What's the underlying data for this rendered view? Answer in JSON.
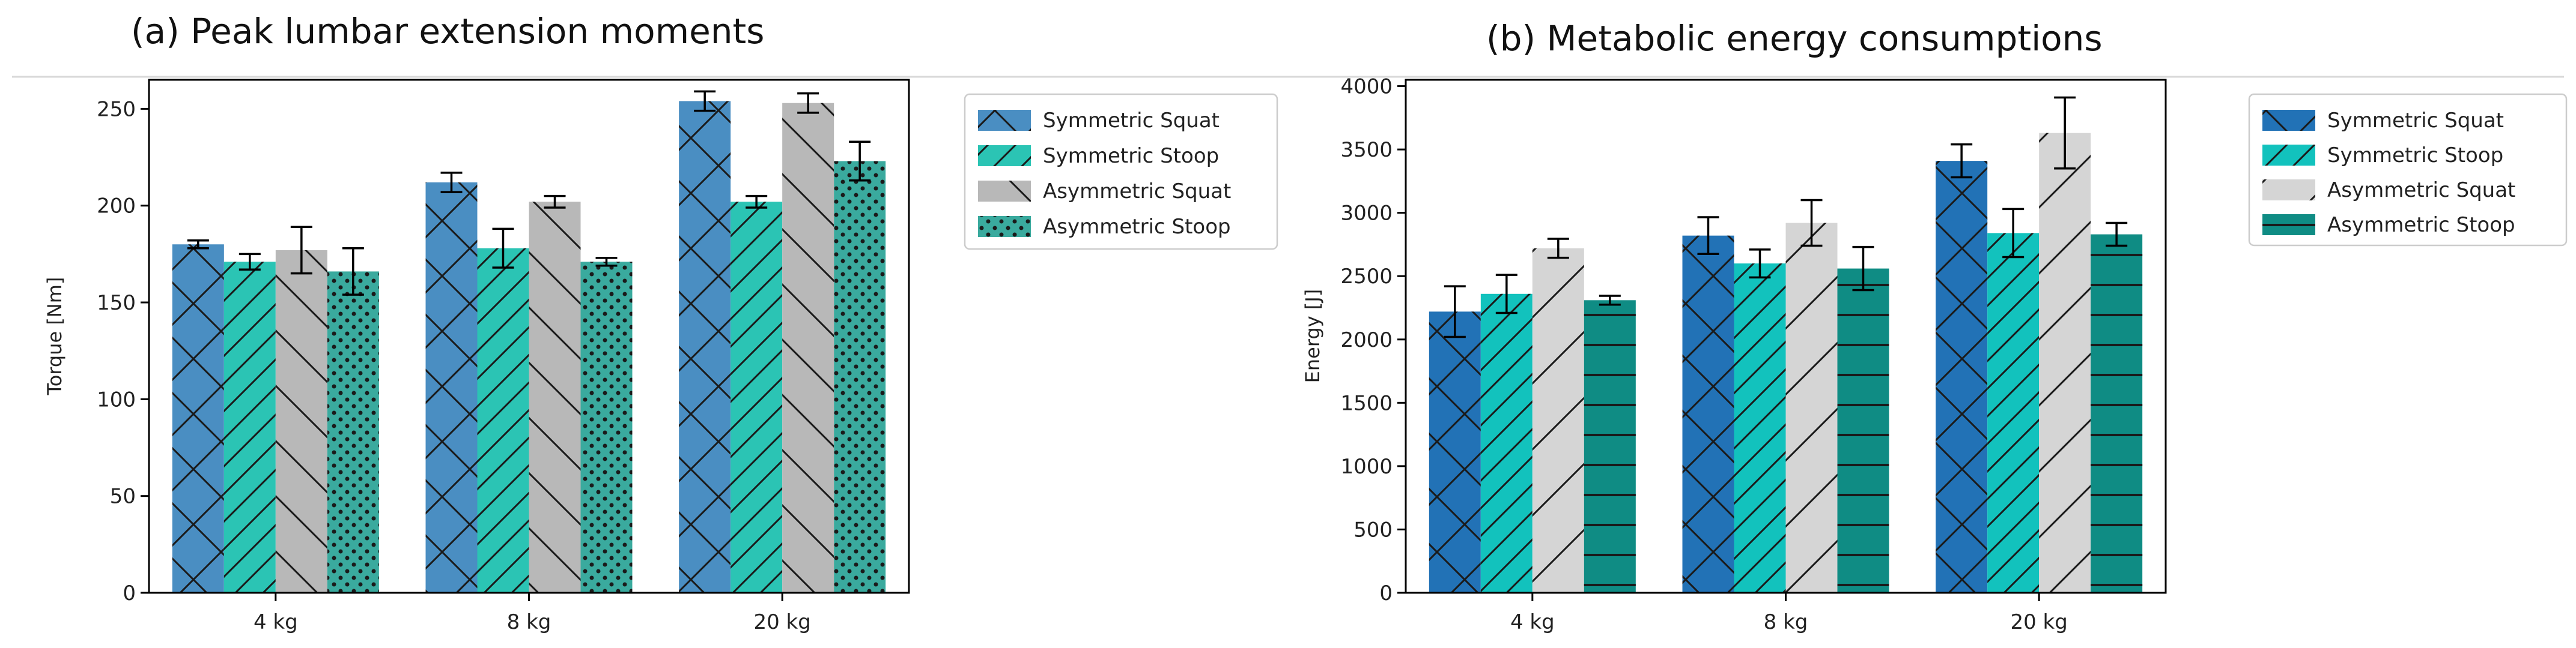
{
  "chart_data": [
    {
      "type": "bar",
      "title": "(a) Peak lumbar extension moments",
      "xlabel": "",
      "ylabel": "Torque [Nm]",
      "categories": [
        "4 kg",
        "8 kg",
        "20 kg"
      ],
      "ylim": [
        0,
        265
      ],
      "yticks": [
        0,
        50,
        100,
        150,
        200,
        250
      ],
      "grid": false,
      "legend_position": "outside-right",
      "series": [
        {
          "name": "Symmetric Squat",
          "values": [
            180,
            212,
            254
          ],
          "errors": [
            2,
            5,
            5
          ],
          "color": "#4a8ec2",
          "hatch": "crosshatch"
        },
        {
          "name": "Symmetric Stoop",
          "values": [
            171,
            178,
            202
          ],
          "errors": [
            4,
            10,
            3
          ],
          "color": "#2bc4b4",
          "hatch": "forward-diagonal"
        },
        {
          "name": "Asymmetric Squat",
          "values": [
            177,
            202,
            253
          ],
          "errors": [
            12,
            3,
            5
          ],
          "color": "#b8b8b8",
          "hatch": "backward-diagonal"
        },
        {
          "name": "Asymmetric Stoop",
          "values": [
            166,
            171,
            223
          ],
          "errors": [
            12,
            2,
            10
          ],
          "color": "#3aaa9e",
          "hatch": "dots"
        }
      ]
    },
    {
      "type": "bar",
      "title": "(b) Metabolic energy consumptions",
      "xlabel": "",
      "ylabel": "Energy [J]",
      "categories": [
        "4 kg",
        "8 kg",
        "20 kg"
      ],
      "ylim": [
        0,
        4050
      ],
      "yticks": [
        0,
        500,
        1000,
        1500,
        2000,
        2500,
        3000,
        3500,
        4000
      ],
      "grid": false,
      "legend_position": "outside-right",
      "series": [
        {
          "name": "Symmetric Squat",
          "values": [
            2220,
            2820,
            3410
          ],
          "errors": [
            200,
            145,
            130
          ],
          "color": "#2272b6",
          "hatch": "crosshatch"
        },
        {
          "name": "Symmetric Stoop",
          "values": [
            2360,
            2600,
            2840
          ],
          "errors": [
            150,
            110,
            190
          ],
          "color": "#12c2bd",
          "hatch": "forward-diagonal"
        },
        {
          "name": "Asymmetric Squat",
          "values": [
            2720,
            2920,
            3630
          ],
          "errors": [
            75,
            180,
            280
          ],
          "color": "#d5d5d5",
          "hatch": "forward-diagonal"
        },
        {
          "name": "Asymmetric Stoop",
          "values": [
            2310,
            2560,
            2830
          ],
          "errors": [
            35,
            170,
            90
          ],
          "color": "#0f8c84",
          "hatch": "horizontal"
        }
      ]
    }
  ]
}
